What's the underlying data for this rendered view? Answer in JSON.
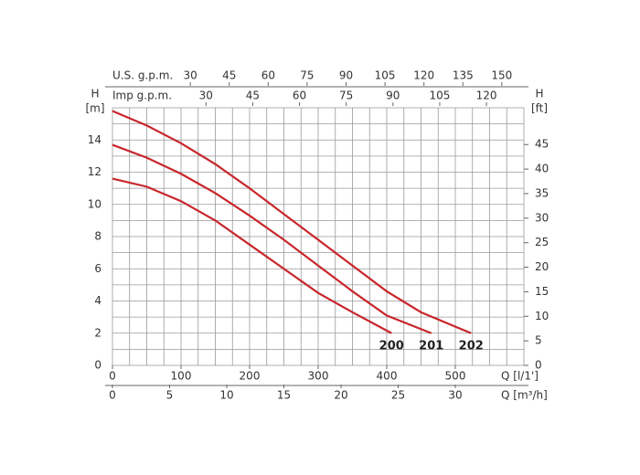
{
  "chart_data": {
    "type": "line",
    "ylabel": [
      "H",
      "[m]"
    ],
    "y2label": [
      "H",
      "[ft]"
    ],
    "ylim": [
      0,
      16
    ],
    "yticks": [
      0,
      2,
      4,
      6,
      8,
      10,
      12,
      14
    ],
    "y2lim": [
      0,
      52.49
    ],
    "y2ticks": [
      0,
      5,
      10,
      15,
      20,
      25,
      30,
      35,
      40,
      45
    ],
    "xlim": [
      0,
      600
    ],
    "ygrid": [
      0,
      1,
      2,
      3,
      4,
      5,
      6,
      7,
      8,
      9,
      10,
      11,
      12,
      13,
      14,
      15,
      16
    ],
    "xgrid": [
      0,
      25,
      50,
      75,
      100,
      125,
      150,
      175,
      200,
      225,
      250,
      275,
      300,
      325,
      350,
      375,
      400,
      425,
      450,
      475,
      500,
      525,
      550,
      575,
      600
    ],
    "grid": true,
    "x_axes": [
      {
        "label": "Q [l/1']",
        "position": "bottom",
        "xlim": [
          0,
          600
        ],
        "xticks": [
          0,
          100,
          200,
          300,
          400,
          500
        ]
      },
      {
        "label": "Q [m³/h]",
        "position": "bottom2",
        "xlim": [
          0,
          36
        ],
        "xticks": [
          0,
          5,
          10,
          15,
          20,
          25,
          30
        ]
      },
      {
        "label": "U.S. g.p.m.",
        "position": "top",
        "xlim": [
          0,
          158.5
        ],
        "xticks": [
          30,
          45,
          60,
          75,
          90,
          105,
          120,
          135,
          150
        ]
      },
      {
        "label": "Imp g.p.m.",
        "position": "top2",
        "xlim": [
          0,
          132
        ],
        "xticks": [
          30,
          45,
          60,
          75,
          90,
          105,
          120
        ]
      }
    ],
    "series": [
      {
        "name": "200",
        "color": "#c8262b",
        "x": [
          0,
          50,
          100,
          150,
          200,
          250,
          300,
          350,
          407
        ],
        "values": [
          11.6,
          11.1,
          10.2,
          9.0,
          7.5,
          6.0,
          4.5,
          3.3,
          2.0
        ]
      },
      {
        "name": "201",
        "color": "#c8262b",
        "x": [
          0,
          50,
          100,
          150,
          200,
          250,
          300,
          350,
          400,
          465
        ],
        "values": [
          13.7,
          12.9,
          11.9,
          10.7,
          9.3,
          7.8,
          6.2,
          4.6,
          3.1,
          2.0
        ]
      },
      {
        "name": "202",
        "color": "#c8262b",
        "x": [
          0,
          50,
          100,
          150,
          200,
          250,
          300,
          350,
          400,
          450,
          523
        ],
        "values": [
          15.8,
          14.9,
          13.8,
          12.5,
          11.0,
          9.4,
          7.8,
          6.2,
          4.6,
          3.3,
          2.0
        ]
      }
    ]
  }
}
